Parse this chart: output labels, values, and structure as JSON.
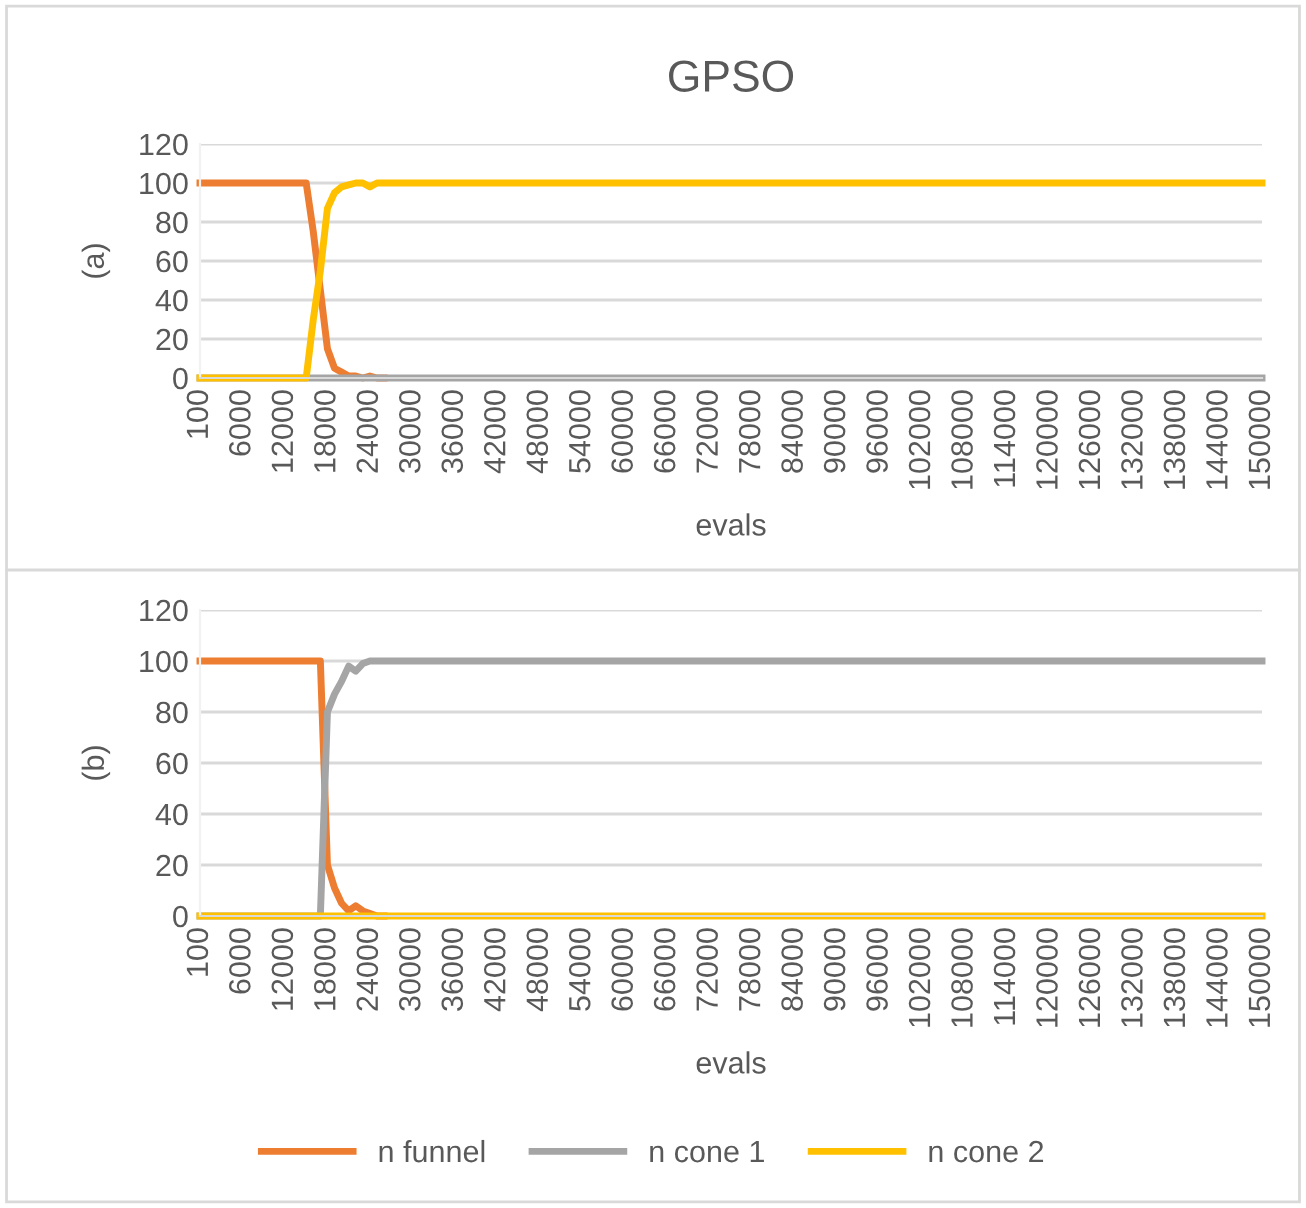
{
  "chart_data": [
    {
      "type": "line",
      "title": "GPSO",
      "xlabel": "evals",
      "ylabel": "(a)",
      "ylim": [
        0,
        120
      ],
      "yticks": [
        0,
        20,
        40,
        60,
        80,
        100,
        120
      ],
      "grid": "y",
      "marker": "none",
      "line_style": "solid",
      "legend": "bottom",
      "categories": [
        "100",
        null,
        null,
        null,
        null,
        null,
        "6000",
        null,
        null,
        null,
        null,
        null,
        "12000",
        null,
        null,
        null,
        null,
        null,
        "18000",
        null,
        null,
        null,
        null,
        null,
        "24000",
        null,
        null,
        null,
        null,
        null,
        "30000",
        null,
        null,
        null,
        null,
        null,
        "36000",
        null,
        null,
        null,
        null,
        null,
        "42000",
        null,
        null,
        null,
        null,
        null,
        "48000",
        null,
        null,
        null,
        null,
        null,
        "54000",
        null,
        null,
        null,
        null,
        null,
        "60000",
        null,
        null,
        null,
        null,
        null,
        "66000",
        null,
        null,
        null,
        null,
        null,
        "72000",
        null,
        null,
        null,
        null,
        null,
        "78000",
        null,
        null,
        null,
        null,
        null,
        "84000",
        null,
        null,
        null,
        null,
        null,
        "90000",
        null,
        null,
        null,
        null,
        null,
        "96000",
        null,
        null,
        null,
        null,
        null,
        "102000",
        null,
        null,
        null,
        null,
        null,
        "108000",
        null,
        null,
        null,
        null,
        null,
        "114000",
        null,
        null,
        null,
        null,
        null,
        "120000",
        null,
        null,
        null,
        null,
        null,
        "126000",
        null,
        null,
        null,
        null,
        null,
        "132000",
        null,
        null,
        null,
        null,
        null,
        "138000",
        null,
        null,
        null,
        null,
        null,
        "144000",
        null,
        null,
        null,
        null,
        null,
        "150000"
      ],
      "series": [
        {
          "name": "n funnel",
          "color": "#ed7d31",
          "values": [
            100,
            100,
            100,
            100,
            100,
            100,
            100,
            100,
            100,
            100,
            100,
            100,
            100,
            100,
            100,
            100,
            75,
            45,
            15,
            5,
            3,
            1,
            1,
            0,
            1,
            0,
            0,
            null,
            null,
            null,
            null,
            null,
            null,
            null,
            null,
            null,
            null,
            null,
            null,
            null,
            null,
            null,
            null,
            null,
            null,
            null,
            null,
            null,
            null,
            null,
            null,
            null,
            null,
            null,
            null,
            null,
            null,
            null,
            null,
            null,
            null,
            null,
            null,
            null,
            null,
            null,
            null,
            null,
            null,
            null,
            null,
            null,
            null,
            null,
            null,
            null,
            null,
            null,
            null,
            null,
            null,
            null,
            null,
            null,
            null,
            null,
            null,
            null,
            null,
            null,
            null,
            null,
            null,
            null,
            null,
            null,
            null,
            null,
            null,
            null,
            null,
            null,
            null,
            null,
            null,
            null,
            null,
            null,
            null,
            null,
            null,
            null,
            null,
            null,
            null,
            null,
            null,
            null,
            null,
            null,
            null,
            null,
            null,
            null,
            null,
            null,
            null,
            null,
            null,
            null,
            null,
            null,
            null,
            null,
            null,
            null,
            null,
            null,
            null,
            null,
            null,
            null,
            null,
            null,
            null,
            null,
            null,
            null,
            null,
            null,
            null
          ]
        },
        {
          "name": "n cone 1",
          "color": "#a5a5a5",
          "values": [
            0,
            0,
            0,
            0,
            0,
            0,
            0,
            0,
            0,
            0,
            0,
            0,
            0,
            0,
            0,
            0,
            0,
            0,
            0,
            0,
            0,
            0,
            0,
            0,
            0,
            0,
            0,
            0,
            0,
            0,
            0,
            0,
            0,
            0,
            0,
            0,
            0,
            0,
            0,
            0,
            0,
            0,
            0,
            0,
            0,
            0,
            0,
            0,
            0,
            0,
            0,
            0,
            0,
            0,
            0,
            0,
            0,
            0,
            0,
            0,
            0,
            0,
            0,
            0,
            0,
            0,
            0,
            0,
            0,
            0,
            0,
            0,
            0,
            0,
            0,
            0,
            0,
            0,
            0,
            0,
            0,
            0,
            0,
            0,
            0,
            0,
            0,
            0,
            0,
            0,
            0,
            0,
            0,
            0,
            0,
            0,
            0,
            0,
            0,
            0,
            0,
            0,
            0,
            0,
            0,
            0,
            0,
            0,
            0,
            0,
            0,
            0,
            0,
            0,
            0,
            0,
            0,
            0,
            0,
            0,
            0,
            0,
            0,
            0,
            0,
            0,
            0,
            0,
            0,
            0,
            0,
            0,
            0,
            0,
            0,
            0,
            0,
            0,
            0,
            0,
            0,
            0,
            0,
            0,
            0,
            0,
            0,
            0,
            0,
            0,
            0
          ]
        },
        {
          "name": "n cone 2",
          "color": "#ffc000",
          "values": [
            0,
            0,
            0,
            0,
            0,
            0,
            0,
            0,
            0,
            0,
            0,
            0,
            0,
            0,
            0,
            0,
            30,
            55,
            87,
            95,
            98,
            99,
            100,
            100,
            98,
            100,
            100,
            100,
            100,
            100,
            100,
            100,
            100,
            100,
            100,
            100,
            100,
            100,
            100,
            100,
            100,
            100,
            100,
            100,
            100,
            100,
            100,
            100,
            100,
            100,
            100,
            100,
            100,
            100,
            100,
            100,
            100,
            100,
            100,
            100,
            100,
            100,
            100,
            100,
            100,
            100,
            100,
            100,
            100,
            100,
            100,
            100,
            100,
            100,
            100,
            100,
            100,
            100,
            100,
            100,
            100,
            100,
            100,
            100,
            100,
            100,
            100,
            100,
            100,
            100,
            100,
            100,
            100,
            100,
            100,
            100,
            100,
            100,
            100,
            100,
            100,
            100,
            100,
            100,
            100,
            100,
            100,
            100,
            100,
            100,
            100,
            100,
            100,
            100,
            100,
            100,
            100,
            100,
            100,
            100,
            100,
            100,
            100,
            100,
            100,
            100,
            100,
            100,
            100,
            100,
            100,
            100,
            100,
            100,
            100,
            100,
            100,
            100,
            100,
            100,
            100,
            100,
            100,
            100,
            100,
            100,
            100,
            100,
            100,
            100,
            100
          ]
        }
      ]
    },
    {
      "type": "line",
      "xlabel": "evals",
      "ylabel": "(b)",
      "ylim": [
        0,
        120
      ],
      "yticks": [
        0,
        20,
        40,
        60,
        80,
        100,
        120
      ],
      "grid": "y",
      "marker": "none",
      "line_style": "solid",
      "legend": "bottom",
      "categories": [
        "100",
        null,
        null,
        null,
        null,
        null,
        "6000",
        null,
        null,
        null,
        null,
        null,
        "12000",
        null,
        null,
        null,
        null,
        null,
        "18000",
        null,
        null,
        null,
        null,
        null,
        "24000",
        null,
        null,
        null,
        null,
        null,
        "30000",
        null,
        null,
        null,
        null,
        null,
        "36000",
        null,
        null,
        null,
        null,
        null,
        "42000",
        null,
        null,
        null,
        null,
        null,
        "48000",
        null,
        null,
        null,
        null,
        null,
        "54000",
        null,
        null,
        null,
        null,
        null,
        "60000",
        null,
        null,
        null,
        null,
        null,
        "66000",
        null,
        null,
        null,
        null,
        null,
        "72000",
        null,
        null,
        null,
        null,
        null,
        "78000",
        null,
        null,
        null,
        null,
        null,
        "84000",
        null,
        null,
        null,
        null,
        null,
        "90000",
        null,
        null,
        null,
        null,
        null,
        "96000",
        null,
        null,
        null,
        null,
        null,
        "102000",
        null,
        null,
        null,
        null,
        null,
        "108000",
        null,
        null,
        null,
        null,
        null,
        "114000",
        null,
        null,
        null,
        null,
        null,
        "120000",
        null,
        null,
        null,
        null,
        null,
        "126000",
        null,
        null,
        null,
        null,
        null,
        "132000",
        null,
        null,
        null,
        null,
        null,
        "138000",
        null,
        null,
        null,
        null,
        null,
        "144000",
        null,
        null,
        null,
        null,
        null,
        "150000"
      ],
      "series": [
        {
          "name": "n funnel",
          "color": "#ed7d31",
          "values": [
            100,
            100,
            100,
            100,
            100,
            100,
            100,
            100,
            100,
            100,
            100,
            100,
            100,
            100,
            100,
            100,
            100,
            100,
            20,
            11,
            5,
            2,
            4,
            2,
            1,
            0,
            0,
            null,
            null,
            null,
            null,
            null,
            null,
            null,
            null,
            null,
            null,
            null,
            null,
            null,
            null,
            null,
            null,
            null,
            null,
            null,
            null,
            null,
            null,
            null,
            null,
            null,
            null,
            null,
            null,
            null,
            null,
            null,
            null,
            null,
            null,
            null,
            null,
            null,
            null,
            null,
            null,
            null,
            null,
            null,
            null,
            null,
            null,
            null,
            null,
            null,
            null,
            null,
            null,
            null,
            null,
            null,
            null,
            null,
            null,
            null,
            null,
            null,
            null,
            null,
            null,
            null,
            null,
            null,
            null,
            null,
            null,
            null,
            null,
            null,
            null,
            null,
            null,
            null,
            null,
            null,
            null,
            null,
            null,
            null,
            null,
            null,
            null,
            null,
            null,
            null,
            null,
            null,
            null,
            null,
            null,
            null,
            null,
            null,
            null,
            null,
            null,
            null,
            null,
            null,
            null,
            null,
            null,
            null,
            null,
            null,
            null,
            null,
            null,
            null,
            null,
            null,
            null,
            null,
            null,
            null,
            null,
            null,
            null,
            null,
            null
          ]
        },
        {
          "name": "n cone 1",
          "color": "#a5a5a5",
          "values": [
            0,
            0,
            0,
            0,
            0,
            0,
            0,
            0,
            0,
            0,
            0,
            0,
            0,
            0,
            0,
            0,
            0,
            0,
            80,
            87,
            92,
            98,
            96,
            99,
            100,
            100,
            100,
            100,
            100,
            100,
            100,
            100,
            100,
            100,
            100,
            100,
            100,
            100,
            100,
            100,
            100,
            100,
            100,
            100,
            100,
            100,
            100,
            100,
            100,
            100,
            100,
            100,
            100,
            100,
            100,
            100,
            100,
            100,
            100,
            100,
            100,
            100,
            100,
            100,
            100,
            100,
            100,
            100,
            100,
            100,
            100,
            100,
            100,
            100,
            100,
            100,
            100,
            100,
            100,
            100,
            100,
            100,
            100,
            100,
            100,
            100,
            100,
            100,
            100,
            100,
            100,
            100,
            100,
            100,
            100,
            100,
            100,
            100,
            100,
            100,
            100,
            100,
            100,
            100,
            100,
            100,
            100,
            100,
            100,
            100,
            100,
            100,
            100,
            100,
            100,
            100,
            100,
            100,
            100,
            100,
            100,
            100,
            100,
            100,
            100,
            100,
            100,
            100,
            100,
            100,
            100,
            100,
            100,
            100,
            100,
            100,
            100,
            100,
            100,
            100,
            100,
            100,
            100,
            100,
            100,
            100,
            100,
            100,
            100,
            100,
            100
          ]
        },
        {
          "name": "n cone 2",
          "color": "#ffc000",
          "values": [
            0,
            0,
            0,
            0,
            0,
            0,
            0,
            0,
            0,
            0,
            0,
            0,
            0,
            0,
            0,
            0,
            0,
            0,
            0,
            0,
            0,
            0,
            0,
            0,
            0,
            0,
            0,
            0,
            0,
            0,
            0,
            0,
            0,
            0,
            0,
            0,
            0,
            0,
            0,
            0,
            0,
            0,
            0,
            0,
            0,
            0,
            0,
            0,
            0,
            0,
            0,
            0,
            0,
            0,
            0,
            0,
            0,
            0,
            0,
            0,
            0,
            0,
            0,
            0,
            0,
            0,
            0,
            0,
            0,
            0,
            0,
            0,
            0,
            0,
            0,
            0,
            0,
            0,
            0,
            0,
            0,
            0,
            0,
            0,
            0,
            0,
            0,
            0,
            0,
            0,
            0,
            0,
            0,
            0,
            0,
            0,
            0,
            0,
            0,
            0,
            0,
            0,
            0,
            0,
            0,
            0,
            0,
            0,
            0,
            0,
            0,
            0,
            0,
            0,
            0,
            0,
            0,
            0,
            0,
            0,
            0,
            0,
            0,
            0,
            0,
            0,
            0,
            0,
            0,
            0,
            0,
            0,
            0,
            0,
            0,
            0,
            0,
            0,
            0,
            0,
            0,
            0,
            0,
            0,
            0,
            0,
            0,
            0,
            0,
            0,
            0
          ]
        }
      ]
    }
  ]
}
